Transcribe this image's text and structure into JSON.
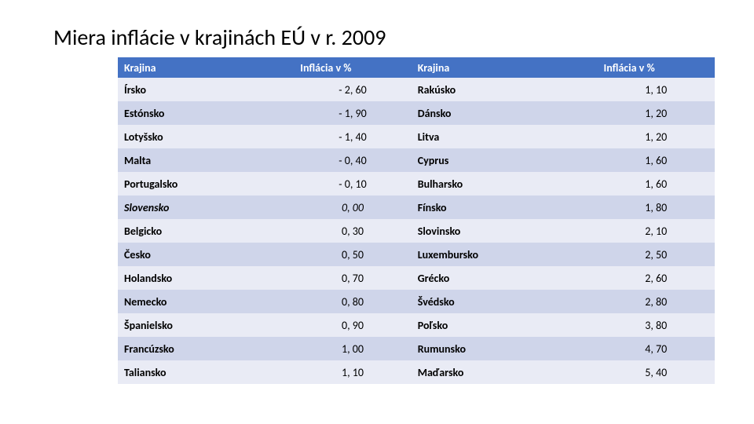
{
  "title": "Miera inflácie v krajinách EÚ v r. 2009",
  "table": {
    "headers": {
      "country_left": "Krajina",
      "value_left": "Inflácia v %",
      "country_right": "Krajina",
      "value_right": "Inflácia v %"
    },
    "rows": [
      {
        "c1": "Írsko",
        "v1": "- 2, 60",
        "c2": "Rakúsko",
        "v2": "1, 10",
        "italic1": false
      },
      {
        "c1": "Estónsko",
        "v1": "- 1, 90",
        "c2": "Dánsko",
        "v2": "1, 20",
        "italic1": false
      },
      {
        "c1": "Lotyšsko",
        "v1": "- 1, 40",
        "c2": "Litva",
        "v2": "1, 20",
        "italic1": false
      },
      {
        "c1": "Malta",
        "v1": "- 0, 40",
        "c2": "Cyprus",
        "v2": "1, 60",
        "italic1": false
      },
      {
        "c1": "Portugalsko",
        "v1": "- 0, 10",
        "c2": "Bulharsko",
        "v2": "1, 60",
        "italic1": false
      },
      {
        "c1": "Slovensko",
        "v1": "0, 00",
        "c2": "Fínsko",
        "v2": "1, 80",
        "italic1": true
      },
      {
        "c1": "Belgicko",
        "v1": "0, 30",
        "c2": "Slovinsko",
        "v2": "2, 10",
        "italic1": false
      },
      {
        "c1": "Česko",
        "v1": "0, 50",
        "c2": "Luxembursko",
        "v2": "2, 50",
        "italic1": false
      },
      {
        "c1": "Holandsko",
        "v1": "0, 70",
        "c2": "Grécko",
        "v2": "2, 60",
        "italic1": false
      },
      {
        "c1": "Nemecko",
        "v1": "0, 80",
        "c2": "Švédsko",
        "v2": "2, 80",
        "italic1": false
      },
      {
        "c1": "Španielsko",
        "v1": "0, 90",
        "c2": "Poľsko",
        "v2": "3, 80",
        "italic1": false
      },
      {
        "c1": "Francúzsko",
        "v1": "1, 00",
        "c2": "Rumunsko",
        "v2": "4, 70",
        "italic1": false
      },
      {
        "c1": "Taliansko",
        "v1": "1, 10",
        "c2": "Maďarsko",
        "v2": "5, 40",
        "italic1": false
      }
    ],
    "colors": {
      "header_bg": "#4472c4",
      "header_fg": "#ffffff",
      "row_even_bg": "#e9ebf5",
      "row_odd_bg": "#cfd5ea",
      "text": "#000000"
    },
    "font_sizes": {
      "title": 28,
      "header": 14,
      "cell": 14
    }
  }
}
